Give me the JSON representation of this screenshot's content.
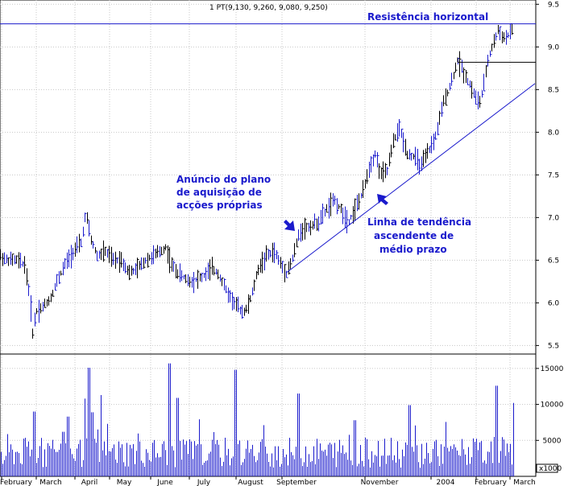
{
  "chart_data": {
    "type": "ohlc",
    "legend": "1 PT(9,130, 9,260, 9,080, 9,250)",
    "x_labels": [
      "February",
      "March",
      "April",
      "May",
      "June",
      "July",
      "August",
      "September",
      "November",
      "2004",
      "February",
      "March"
    ],
    "price_axis": {
      "ticks": [
        "5.5",
        "6.0",
        "6.5",
        "7.0",
        "7.5",
        "8.0",
        "8.5",
        "9.0",
        "9.5"
      ],
      "range": [
        5.4,
        9.55
      ]
    },
    "volume_axis": {
      "ticks": [
        "5000",
        "10000",
        "15000"
      ],
      "range": [
        0,
        17000
      ],
      "scale_label": "x1000"
    },
    "annotations": {
      "resistance": "Resistência horizontal",
      "announcement": [
        "Anúncio do plano",
        "de aquisição de",
        "acções próprias"
      ],
      "trendline": [
        "Linha de tendência",
        "ascendente de",
        "médio prazo"
      ]
    },
    "series_anchors": [
      [
        0,
        6.55
      ],
      [
        8,
        6.5
      ],
      [
        20,
        6.5
      ],
      [
        30,
        6.45
      ],
      [
        36,
        6.1
      ],
      [
        40,
        5.65
      ],
      [
        44,
        5.9
      ],
      [
        52,
        5.95
      ],
      [
        62,
        6.05
      ],
      [
        70,
        6.25
      ],
      [
        80,
        6.45
      ],
      [
        90,
        6.6
      ],
      [
        100,
        6.7
      ],
      [
        106,
        7.05
      ],
      [
        112,
        6.75
      ],
      [
        120,
        6.55
      ],
      [
        130,
        6.6
      ],
      [
        140,
        6.5
      ],
      [
        150,
        6.5
      ],
      [
        160,
        6.35
      ],
      [
        170,
        6.4
      ],
      [
        180,
        6.5
      ],
      [
        190,
        6.55
      ],
      [
        198,
        6.6
      ],
      [
        205,
        6.65
      ],
      [
        212,
        6.45
      ],
      [
        220,
        6.35
      ],
      [
        235,
        6.25
      ],
      [
        250,
        6.3
      ],
      [
        262,
        6.4
      ],
      [
        270,
        6.35
      ],
      [
        280,
        6.15
      ],
      [
        290,
        6.0
      ],
      [
        300,
        5.9
      ],
      [
        305,
        5.92
      ],
      [
        312,
        6.1
      ],
      [
        320,
        6.4
      ],
      [
        330,
        6.55
      ],
      [
        340,
        6.6
      ],
      [
        348,
        6.45
      ],
      [
        355,
        6.35
      ],
      [
        362,
        6.5
      ],
      [
        372,
        6.85
      ],
      [
        385,
        6.9
      ],
      [
        395,
        6.95
      ],
      [
        405,
        7.1
      ],
      [
        415,
        7.2
      ],
      [
        425,
        7.05
      ],
      [
        432,
        6.95
      ],
      [
        440,
        7.1
      ],
      [
        450,
        7.3
      ],
      [
        458,
        7.6
      ],
      [
        465,
        7.75
      ],
      [
        472,
        7.5
      ],
      [
        480,
        7.55
      ],
      [
        488,
        7.9
      ],
      [
        495,
        8.05
      ],
      [
        505,
        7.75
      ],
      [
        515,
        7.7
      ],
      [
        522,
        7.6
      ],
      [
        530,
        7.75
      ],
      [
        540,
        7.95
      ],
      [
        550,
        8.35
      ],
      [
        560,
        8.6
      ],
      [
        568,
        8.85
      ],
      [
        575,
        8.7
      ],
      [
        583,
        8.55
      ],
      [
        590,
        8.4
      ],
      [
        595,
        8.35
      ],
      [
        600,
        8.55
      ],
      [
        605,
        8.85
      ],
      [
        612,
        9.05
      ],
      [
        618,
        9.2
      ],
      [
        625,
        9.1
      ],
      [
        632,
        9.15
      ],
      [
        637,
        9.25
      ]
    ],
    "volume_spikes": [
      [
        42,
        9000
      ],
      [
        70,
        3400
      ],
      [
        78,
        6200
      ],
      [
        84,
        8300
      ],
      [
        105,
        10800
      ],
      [
        110,
        15100
      ],
      [
        114,
        8900
      ],
      [
        125,
        11300
      ],
      [
        210,
        15700
      ],
      [
        220,
        10900
      ],
      [
        292,
        14800
      ],
      [
        370,
        11500
      ],
      [
        440,
        7800
      ],
      [
        508,
        9900
      ],
      [
        616,
        12600
      ],
      [
        637,
        10200
      ]
    ],
    "resistance_level": 9.27,
    "support_box": {
      "price": 8.82,
      "x_from": 568,
      "x_to": 665
    },
    "trendline_data": {
      "from": [
        355,
        6.35
      ],
      "to": [
        664,
        8.57
      ]
    }
  }
}
